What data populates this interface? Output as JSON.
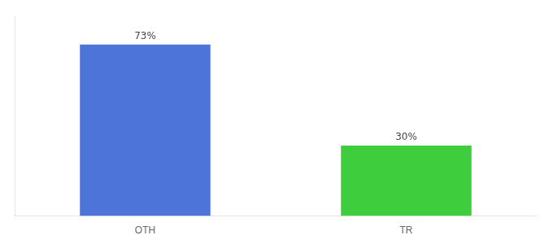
{
  "chart_data": {
    "type": "bar",
    "categories": [
      "OTH",
      "TR"
    ],
    "values": [
      73,
      30
    ],
    "value_labels": [
      "73%",
      "30%"
    ],
    "colors": [
      "#4d74d8",
      "#3dcd3d"
    ],
    "ylim": [
      0,
      85
    ],
    "yticks": [],
    "grid": false,
    "data_labels": true,
    "tick_labels": "x"
  }
}
